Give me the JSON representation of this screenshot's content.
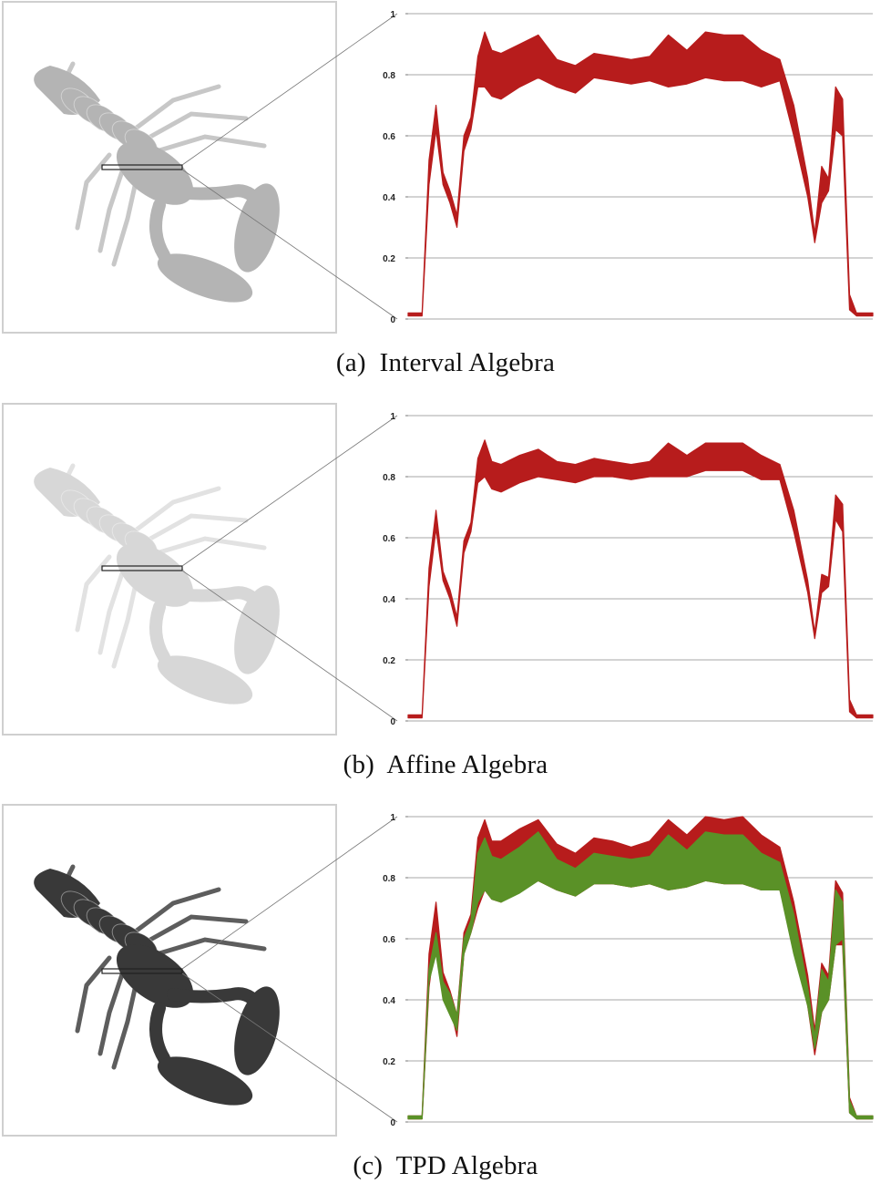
{
  "figure": {
    "panels": [
      {
        "id": "a",
        "label": "(a)",
        "caption": "Interval Algebra",
        "render_tone": "light",
        "bands": [
          "interval"
        ]
      },
      {
        "id": "b",
        "label": "(b)",
        "caption": "Affine Algebra",
        "render_tone": "lighter",
        "bands": [
          "affine"
        ]
      },
      {
        "id": "c",
        "label": "(c)",
        "caption": "TPD Algebra",
        "render_tone": "dark",
        "bands": [
          "interval",
          "tpd"
        ]
      }
    ],
    "colors": {
      "interval_band": "#b71c1c",
      "tpd_band": "#5a9127",
      "grid": "#8a8a8a",
      "frame": "#cccccc"
    }
  },
  "chart_data": [
    {
      "type": "area",
      "panel": "a",
      "ylim": [
        0,
        1
      ],
      "yticks": [
        "0",
        "0.2",
        "0.4",
        "0.6",
        "0.8",
        "1"
      ],
      "grid": "horizontal",
      "x": [
        0,
        0.03,
        0.045,
        0.06,
        0.075,
        0.09,
        0.105,
        0.12,
        0.135,
        0.15,
        0.165,
        0.18,
        0.2,
        0.24,
        0.28,
        0.32,
        0.36,
        0.4,
        0.44,
        0.48,
        0.52,
        0.56,
        0.6,
        0.64,
        0.68,
        0.72,
        0.76,
        0.8,
        0.83,
        0.86,
        0.875,
        0.89,
        0.905,
        0.92,
        0.935,
        0.95,
        0.965,
        0.98,
        1.0
      ],
      "series": [
        {
          "lower": [
            0.01,
            0.01,
            0.44,
            0.62,
            0.44,
            0.38,
            0.3,
            0.55,
            0.62,
            0.76,
            0.76,
            0.73,
            0.72,
            0.76,
            0.79,
            0.76,
            0.74,
            0.79,
            0.78,
            0.77,
            0.78,
            0.76,
            0.77,
            0.79,
            0.78,
            0.78,
            0.76,
            0.78,
            0.6,
            0.4,
            0.25,
            0.38,
            0.42,
            0.62,
            0.6,
            0.03,
            0.01,
            0.01,
            0.01
          ],
          "upper": [
            0.02,
            0.02,
            0.52,
            0.7,
            0.48,
            0.42,
            0.34,
            0.6,
            0.66,
            0.86,
            0.94,
            0.88,
            0.87,
            0.9,
            0.93,
            0.85,
            0.83,
            0.87,
            0.86,
            0.85,
            0.86,
            0.93,
            0.88,
            0.94,
            0.93,
            0.93,
            0.88,
            0.85,
            0.7,
            0.46,
            0.28,
            0.5,
            0.46,
            0.76,
            0.72,
            0.08,
            0.02,
            0.02,
            0.02
          ]
        }
      ]
    },
    {
      "type": "area",
      "panel": "b",
      "ylim": [
        0,
        1
      ],
      "yticks": [
        "0",
        "0.2",
        "0.4",
        "0.6",
        "0.8",
        "1"
      ],
      "grid": "horizontal",
      "x": [
        0,
        0.03,
        0.045,
        0.06,
        0.075,
        0.09,
        0.105,
        0.12,
        0.135,
        0.15,
        0.165,
        0.18,
        0.2,
        0.24,
        0.28,
        0.32,
        0.36,
        0.4,
        0.44,
        0.48,
        0.52,
        0.56,
        0.6,
        0.64,
        0.68,
        0.72,
        0.76,
        0.8,
        0.83,
        0.86,
        0.875,
        0.89,
        0.905,
        0.92,
        0.935,
        0.95,
        0.965,
        0.98,
        1.0
      ],
      "series": [
        {
          "lower": [
            0.01,
            0.01,
            0.44,
            0.63,
            0.46,
            0.4,
            0.31,
            0.55,
            0.62,
            0.78,
            0.8,
            0.76,
            0.75,
            0.78,
            0.8,
            0.79,
            0.78,
            0.8,
            0.8,
            0.79,
            0.8,
            0.8,
            0.8,
            0.82,
            0.82,
            0.82,
            0.79,
            0.79,
            0.62,
            0.42,
            0.27,
            0.42,
            0.44,
            0.66,
            0.62,
            0.03,
            0.01,
            0.01,
            0.01
          ],
          "upper": [
            0.02,
            0.02,
            0.5,
            0.69,
            0.49,
            0.43,
            0.34,
            0.59,
            0.65,
            0.86,
            0.92,
            0.85,
            0.84,
            0.87,
            0.89,
            0.85,
            0.84,
            0.86,
            0.85,
            0.84,
            0.85,
            0.91,
            0.87,
            0.91,
            0.91,
            0.91,
            0.87,
            0.84,
            0.69,
            0.46,
            0.29,
            0.48,
            0.47,
            0.74,
            0.71,
            0.07,
            0.02,
            0.02,
            0.02
          ]
        }
      ]
    },
    {
      "type": "area",
      "panel": "c",
      "ylim": [
        0,
        1
      ],
      "yticks": [
        "0",
        "0.2",
        "0.4",
        "0.6",
        "0.8",
        "1"
      ],
      "grid": "horizontal",
      "x": [
        0,
        0.03,
        0.045,
        0.06,
        0.075,
        0.09,
        0.105,
        0.12,
        0.135,
        0.15,
        0.165,
        0.18,
        0.2,
        0.24,
        0.28,
        0.32,
        0.36,
        0.4,
        0.44,
        0.48,
        0.52,
        0.56,
        0.6,
        0.64,
        0.68,
        0.72,
        0.76,
        0.8,
        0.83,
        0.86,
        0.875,
        0.89,
        0.905,
        0.92,
        0.935,
        0.95,
        0.965,
        0.98,
        1.0
      ],
      "series": [
        {
          "name": "Interval",
          "color": "#b71c1c",
          "lower": [
            0.01,
            0.01,
            0.44,
            0.62,
            0.44,
            0.38,
            0.28,
            0.55,
            0.62,
            0.7,
            0.76,
            0.73,
            0.72,
            0.76,
            0.79,
            0.76,
            0.74,
            0.78,
            0.78,
            0.77,
            0.78,
            0.76,
            0.77,
            0.79,
            0.78,
            0.78,
            0.76,
            0.76,
            0.58,
            0.38,
            0.22,
            0.36,
            0.4,
            0.58,
            0.58,
            0.03,
            0.01,
            0.01,
            0.01
          ],
          "upper": [
            0.02,
            0.02,
            0.55,
            0.72,
            0.49,
            0.43,
            0.35,
            0.62,
            0.68,
            0.93,
            0.99,
            0.92,
            0.92,
            0.96,
            0.99,
            0.91,
            0.88,
            0.93,
            0.92,
            0.9,
            0.92,
            0.99,
            0.94,
            1.0,
            0.99,
            1.0,
            0.94,
            0.9,
            0.72,
            0.48,
            0.3,
            0.52,
            0.48,
            0.79,
            0.75,
            0.08,
            0.02,
            0.02,
            0.02
          ]
        },
        {
          "name": "TPD",
          "color": "#5a9127",
          "lower": [
            0.01,
            0.01,
            0.46,
            0.55,
            0.4,
            0.35,
            0.3,
            0.55,
            0.62,
            0.72,
            0.76,
            0.73,
            0.72,
            0.75,
            0.79,
            0.76,
            0.74,
            0.78,
            0.78,
            0.77,
            0.78,
            0.76,
            0.77,
            0.79,
            0.78,
            0.78,
            0.76,
            0.76,
            0.55,
            0.38,
            0.24,
            0.36,
            0.4,
            0.58,
            0.6,
            0.03,
            0.01,
            0.01,
            0.01
          ],
          "upper": [
            0.02,
            0.02,
            0.5,
            0.62,
            0.46,
            0.42,
            0.35,
            0.6,
            0.66,
            0.88,
            0.93,
            0.87,
            0.86,
            0.9,
            0.95,
            0.86,
            0.83,
            0.88,
            0.87,
            0.86,
            0.87,
            0.94,
            0.89,
            0.95,
            0.94,
            0.94,
            0.88,
            0.85,
            0.68,
            0.44,
            0.28,
            0.5,
            0.46,
            0.76,
            0.72,
            0.07,
            0.02,
            0.02,
            0.02
          ]
        }
      ]
    }
  ]
}
